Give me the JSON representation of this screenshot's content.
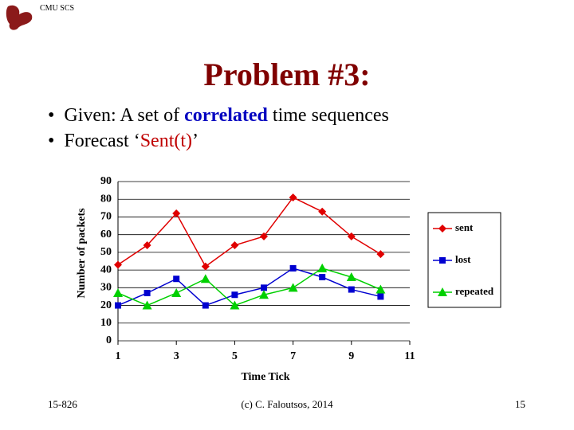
{
  "header": {
    "logo": "CMU SCS",
    "title": "Problem #3:"
  },
  "bullets": [
    [
      "Given: A set of ",
      "correlated",
      " time sequences"
    ],
    [
      "Forecast ‘",
      "Sent(t)",
      "’"
    ]
  ],
  "footer": {
    "left": "15-826",
    "center": "(c) C. Faloutsos, 2014",
    "right": "15"
  },
  "chart_data": {
    "type": "line",
    "x_label": "Time Tick",
    "y_label": "Number of packets",
    "x": [
      1,
      2,
      3,
      4,
      5,
      6,
      7,
      8,
      9,
      10
    ],
    "series": [
      {
        "name": "sent",
        "color": "#e00000",
        "marker": "diamond",
        "values": [
          43,
          54,
          72,
          42,
          54,
          59,
          81,
          73,
          59,
          49
        ]
      },
      {
        "name": "lost",
        "color": "#0000d0",
        "marker": "square",
        "values": [
          20,
          27,
          35,
          20,
          26,
          30,
          41,
          36,
          29,
          25
        ]
      },
      {
        "name": "repeated",
        "color": "#00d000",
        "marker": "triangle",
        "values": [
          27,
          20,
          27,
          35,
          20,
          26,
          30,
          41,
          36,
          29
        ]
      }
    ],
    "xlim": [
      1,
      11
    ],
    "xticks": [
      1,
      3,
      5,
      7,
      9,
      11
    ],
    "ylim": [
      0,
      90
    ],
    "yticks": [
      0,
      10,
      20,
      30,
      40,
      50,
      60,
      70,
      80,
      90
    ],
    "grid": true,
    "legend": "right"
  }
}
